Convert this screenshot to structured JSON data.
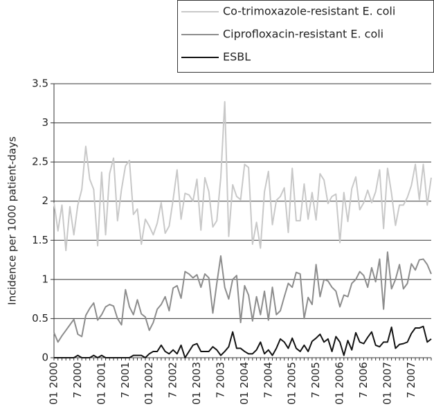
{
  "chart_data": {
    "type": "line",
    "y_label": "Incidence per 1000 patient-days",
    "categories": [
      "01 2000",
      null,
      null,
      null,
      null,
      null,
      "7 2000",
      null,
      null,
      null,
      null,
      null,
      "01 2001",
      null,
      null,
      null,
      null,
      null,
      "7 2001",
      null,
      null,
      null,
      null,
      null,
      "01 2002",
      null,
      null,
      null,
      null,
      null,
      "7 2002",
      null,
      null,
      null,
      null,
      null,
      "01 2003",
      null,
      null,
      null,
      null,
      null,
      "7 2003",
      null,
      null,
      null,
      null,
      null,
      "01 2004",
      null,
      null,
      null,
      null,
      null,
      "7 2004",
      null,
      null,
      null,
      null,
      null,
      "01 2005",
      null,
      null,
      null,
      null,
      null,
      "7 2005",
      null,
      null,
      null,
      null,
      null,
      "01 2006",
      null,
      null,
      null,
      null,
      null,
      "7 2006",
      null,
      null,
      null,
      null,
      null,
      "01 2007",
      null,
      null,
      null,
      null,
      null,
      "7 2007",
      null,
      null,
      null,
      null,
      null
    ],
    "series": [
      {
        "name": "Co-trimoxazole-resistant E. coli",
        "color": "#c8c8c8",
        "values": [
          1.98,
          1.62,
          1.95,
          1.37,
          1.93,
          1.57,
          1.95,
          2.15,
          2.7,
          2.28,
          2.15,
          1.43,
          2.37,
          1.57,
          2.35,
          2.55,
          1.75,
          2.15,
          2.45,
          2.52,
          1.83,
          1.9,
          1.45,
          1.77,
          1.68,
          1.57,
          1.72,
          1.98,
          1.59,
          1.68,
          2.02,
          2.4,
          1.77,
          2.1,
          2.08,
          2.0,
          2.28,
          1.63,
          2.3,
          2.12,
          1.67,
          1.75,
          2.3,
          3.27,
          1.55,
          2.21,
          2.06,
          2.02,
          2.47,
          2.43,
          1.45,
          1.73,
          1.4,
          2.12,
          2.38,
          1.7,
          2.01,
          2.06,
          2.17,
          1.6,
          2.42,
          1.75,
          1.75,
          2.22,
          1.77,
          2.11,
          1.76,
          2.35,
          2.27,
          1.97,
          2.06,
          2.09,
          1.47,
          2.11,
          1.74,
          2.16,
          2.31,
          1.89,
          1.98,
          2.14,
          1.98,
          2.12,
          2.4,
          1.65,
          2.42,
          2.1,
          1.69,
          1.95,
          1.95,
          2.05,
          2.2,
          2.47,
          2.02,
          2.47,
          1.95,
          2.3
        ]
      },
      {
        "name": "Ciprofloxacin-resistant E. coli",
        "color": "#8c8c8c",
        "values": [
          0.32,
          0.2,
          0.28,
          0.35,
          0.42,
          0.49,
          0.3,
          0.27,
          0.54,
          0.63,
          0.7,
          0.48,
          0.55,
          0.65,
          0.68,
          0.66,
          0.5,
          0.42,
          0.87,
          0.65,
          0.55,
          0.74,
          0.56,
          0.52,
          0.35,
          0.45,
          0.62,
          0.68,
          0.78,
          0.6,
          0.89,
          0.92,
          0.76,
          1.1,
          1.07,
          1.02,
          1.06,
          0.9,
          1.07,
          1.02,
          0.57,
          0.95,
          1.3,
          0.9,
          0.75,
          1.0,
          1.05,
          0.45,
          0.92,
          0.8,
          0.47,
          0.78,
          0.55,
          0.85,
          0.48,
          0.9,
          0.55,
          0.6,
          0.78,
          0.95,
          0.9,
          1.09,
          1.07,
          0.5,
          0.77,
          0.68,
          1.19,
          0.78,
          1.0,
          0.98,
          0.9,
          0.85,
          0.65,
          0.8,
          0.78,
          0.95,
          1.0,
          1.1,
          1.05,
          0.9,
          1.15,
          0.97,
          1.26,
          0.62,
          1.35,
          0.88,
          1.0,
          1.19,
          0.88,
          0.95,
          1.2,
          1.12,
          1.25,
          1.26,
          1.19,
          1.07
        ]
      },
      {
        "name": "ESBL",
        "color": "#111111",
        "values": [
          0,
          0,
          0,
          0,
          0,
          0,
          0.03,
          0,
          0,
          0,
          0.03,
          0,
          0.03,
          0,
          0,
          0,
          0,
          0,
          0,
          0,
          0.03,
          0.03,
          0.03,
          0,
          0.05,
          0.08,
          0.08,
          0.16,
          0.08,
          0.05,
          0.1,
          0.05,
          0.16,
          0,
          0.08,
          0.16,
          0.18,
          0.08,
          0.08,
          0.08,
          0.14,
          0.1,
          0.03,
          0.08,
          0.14,
          0.33,
          0.12,
          0.12,
          0.08,
          0.05,
          0.05,
          0.1,
          0.2,
          0.05,
          0.1,
          0.03,
          0.12,
          0.24,
          0.2,
          0.12,
          0.25,
          0.12,
          0.08,
          0.16,
          0.08,
          0.21,
          0.25,
          0.3,
          0.2,
          0.24,
          0.08,
          0.27,
          0.2,
          0.03,
          0.22,
          0.1,
          0.32,
          0.2,
          0.18,
          0.26,
          0.33,
          0.16,
          0.14,
          0.2,
          0.2,
          0.39,
          0.12,
          0.17,
          0.18,
          0.2,
          0.31,
          0.38,
          0.38,
          0.4,
          0.2,
          0.24
        ]
      }
    ],
    "ylim": [
      0,
      3.5
    ],
    "yticks": [
      0,
      0.5,
      1,
      1.5,
      2,
      2.5,
      3,
      3.5
    ],
    "grid": true,
    "legend": "top-right"
  }
}
